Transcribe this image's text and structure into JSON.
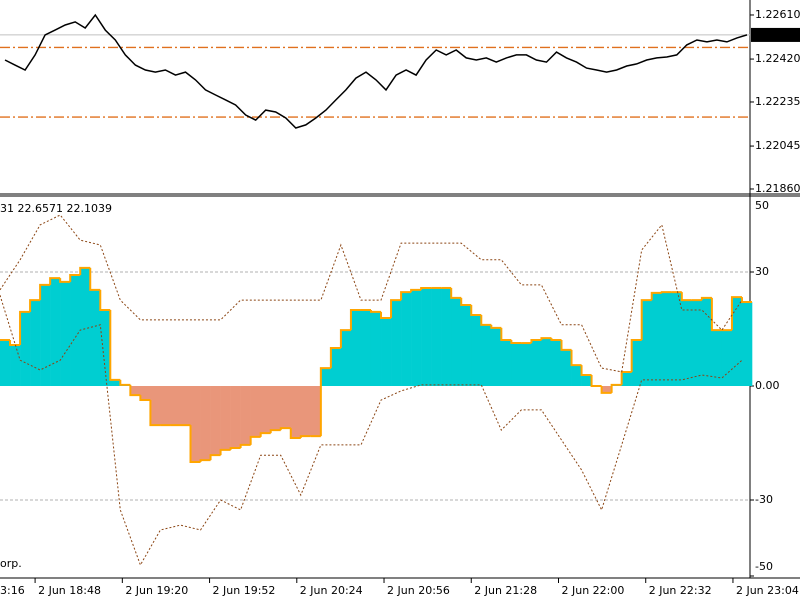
{
  "chart_data": [
    {
      "type": "line",
      "xlim": [
        0,
        74.8
      ],
      "ylim": [
        1.21847,
        1.22653
      ],
      "yticks": [
        {
          "value": 1.2261,
          "label": "1.22610"
        },
        {
          "value": 1.2242,
          "label": "1.22420"
        },
        1.22235,
        1.22045,
        {
          "value": 1.2186,
          "label": "1.21860"
        }
      ],
      "color": "#000000",
      "values": [
        1.22416,
        1.22394,
        1.22373,
        1.22438,
        1.22524,
        1.22545,
        1.22567,
        1.2258,
        1.22554,
        1.2261,
        1.22545,
        1.22502,
        1.22438,
        1.22394,
        1.22373,
        1.22364,
        1.22373,
        1.22351,
        1.22364,
        1.2233,
        1.22287,
        1.22265,
        1.22244,
        1.22222,
        1.22179,
        1.22157,
        1.222,
        1.22192,
        1.22166,
        1.22123,
        1.22136,
        1.22166,
        1.222,
        1.22244,
        1.22287,
        1.22338,
        1.22364,
        1.2233,
        1.22287,
        1.22351,
        1.22373,
        1.22351,
        1.22416,
        1.22459,
        1.22438,
        1.22459,
        1.22425,
        1.22416,
        1.22425,
        1.22407,
        1.22425,
        1.22438,
        1.22438,
        1.22416,
        1.22407,
        1.2245,
        1.22425,
        1.22407,
        1.22381,
        1.22373,
        1.22364,
        1.22373,
        1.2239,
        1.22399,
        1.22416,
        1.22425,
        1.22429,
        1.22438,
        1.22481,
        1.22502,
        1.22494,
        1.22502,
        1.22494,
        1.22511,
        1.22524
      ],
      "current_price": 1.22524,
      "current_price_color": "#c0c0c0",
      "levels": [
        1.2247,
        1.2217
      ],
      "level_color": "#e0701e"
    },
    {
      "type": "histogram",
      "label": "31 22.6571 22.1039",
      "copyright": "orp.",
      "xlim": [
        0,
        74.8
      ],
      "ylim": [
        -50,
        50
      ],
      "yticks": [
        50,
        30,
        {
          "value": 0,
          "label": "0.00"
        },
        -30,
        -50
      ],
      "grid": true,
      "xticks": [
        {
          "value": -5.2,
          "label": "3:16"
        },
        {
          "value": 3.5,
          "label": "2 Jun 18:48"
        },
        {
          "value": 12.2,
          "label": "2 Jun 19:20"
        },
        {
          "value": 20.9,
          "label": "2 Jun 19:52"
        },
        {
          "value": 29.6,
          "label": "2 Jun 20:24"
        },
        {
          "value": 38.3,
          "label": "2 Jun 20:56"
        },
        {
          "value": 47.0,
          "label": "2 Jun 21:28"
        },
        {
          "value": 55.7,
          "label": "2 Jun 22:00"
        },
        {
          "value": 64.4,
          "label": "2 Jun 22:32"
        },
        {
          "value": 73.1,
          "label": "2 Jun 23:04"
        }
      ],
      "series": [
        {
          "style": "bar",
          "color": "#00ced1",
          "negative_color": "#e9967a",
          "edge_color": "#ffa500",
          "values": [
            12.1,
            10.8,
            19.5,
            22.6,
            26.6,
            28.4,
            27.4,
            29.2,
            31.1,
            25.3,
            20,
            1.6,
            0.3,
            -2.4,
            -3.7,
            -10.3,
            -10.3,
            -10.3,
            -10.3,
            -20,
            -19.5,
            -18.2,
            -16.8,
            -16.3,
            -15.5,
            -13.4,
            -12.4,
            -11.6,
            -11.1,
            -13.7,
            -13.2,
            -13.2,
            4.7,
            10,
            14.7,
            20,
            20,
            19.5,
            17.9,
            22.6,
            24.7,
            25.3,
            25.8,
            25.8,
            25.8,
            23.2,
            21.3,
            18.7,
            16.1,
            15.3,
            12.1,
            11.3,
            11.3,
            12.1,
            12.6,
            12.1,
            9.5,
            5.5,
            2.9,
            0,
            -1.8,
            0.3,
            3.7,
            12.1,
            22.6,
            24.5,
            24.7,
            24.7,
            22.6,
            22.6,
            23.2,
            14.7,
            14.7,
            23.4,
            22.1
          ]
        },
        {
          "style": "band",
          "color": "#8b4513",
          "x": [
            0,
            2,
            4,
            6,
            8,
            10,
            12,
            14,
            16,
            18,
            20,
            22,
            24,
            26,
            28,
            30,
            32,
            34,
            36,
            38,
            40,
            42,
            44,
            46,
            48,
            50,
            52,
            54,
            56,
            58,
            60,
            62,
            64,
            66,
            68,
            70,
            72,
            74
          ],
          "values": [
            25.3,
            33.2,
            42.4,
            45,
            38.4,
            37.1,
            22.6,
            17.4,
            17.4,
            17.4,
            17.4,
            17.4,
            22.6,
            22.6,
            22.6,
            22.6,
            22.6,
            37.1,
            22.6,
            22.6,
            37.6,
            37.6,
            37.6,
            37.6,
            33.2,
            33.2,
            26.6,
            26.6,
            16.1,
            16.1,
            4.7,
            3.7,
            35.8,
            42.4,
            20,
            20,
            14.7,
            22.6
          ]
        },
        {
          "style": "band",
          "color": "#8b4513",
          "x": [
            0,
            2,
            4,
            6,
            8,
            10,
            12,
            14,
            16,
            18,
            20,
            22,
            24,
            26,
            28,
            30,
            32,
            34,
            36,
            38,
            40,
            42,
            44,
            46,
            48,
            50,
            52,
            54,
            56,
            58,
            60,
            62,
            64,
            66,
            68,
            70,
            72,
            74
          ],
          "values": [
            23.9,
            6.8,
            4.2,
            6.8,
            14.7,
            16.1,
            -32.6,
            -47.1,
            -37.9,
            -36.6,
            -37.9,
            -30,
            -32.6,
            -18.2,
            -18.2,
            -28.7,
            -15.5,
            -15.5,
            -15.5,
            -3.7,
            -1.3,
            0.3,
            0.3,
            0.3,
            0.3,
            -11.6,
            -6.3,
            -6.3,
            -14.2,
            -22.1,
            -32.6,
            -15.5,
            1.6,
            1.6,
            1.6,
            2.9,
            2.1,
            6.8
          ]
        }
      ]
    }
  ]
}
